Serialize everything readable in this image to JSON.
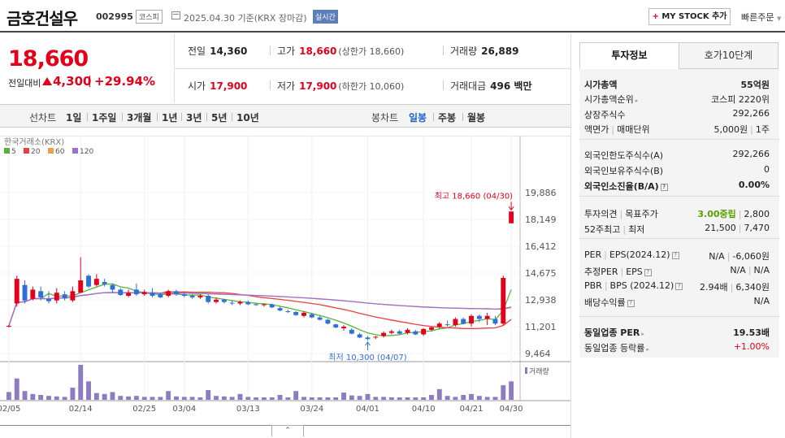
{
  "header": {
    "stock_name": "금호건설우",
    "stock_code": "002995",
    "market_badge": "코스피",
    "date_text": "2025.04.30 기준(KRX 장마감)",
    "realtime_badge": "실시간",
    "mystock_plus": "+",
    "mystock_label": " MY STOCK 추가",
    "quick_order": "빠른주문"
  },
  "price": {
    "current": "18,660",
    "change_label": "전일대비",
    "change_amount": "4,300",
    "change_sep": "|",
    "change_percent": "+29.94%"
  },
  "quotes": {
    "prev_close": {
      "label": "전일",
      "value": "14,360"
    },
    "high": {
      "label": "고가",
      "value": "18,660",
      "sub": "(상한가 18,660)"
    },
    "volume": {
      "label": "거래량",
      "value": "26,889"
    },
    "open": {
      "label": "시가",
      "value": "17,900"
    },
    "low": {
      "label": "저가",
      "value": "17,900",
      "sub": "(하한가 10,060)"
    },
    "amount": {
      "label": "거래대금",
      "value": "496 백만"
    }
  },
  "period_bar": {
    "line_chart_label": "선차트",
    "periods": [
      "1일",
      "1주일",
      "3개월",
      "1년",
      "3년",
      "5년",
      "10년"
    ],
    "candle_chart_label": "봉차트",
    "candle_periods": [
      "일봉",
      "주봉",
      "월봉"
    ],
    "active_candle": "일봉"
  },
  "chart": {
    "source_label": "한국거래소(KRX)",
    "ma_legend": [
      {
        "label": "5",
        "color": "#57b33a"
      },
      {
        "label": "20",
        "color": "#e8413c"
      },
      {
        "label": "60",
        "color": "#f29b4b"
      },
      {
        "label": "120",
        "color": "#9b6fd6"
      }
    ],
    "high_annotation": "최고 18,660 (04/30)",
    "low_annotation": "최저 10,300 (04/07)",
    "volume_label": "거래량",
    "hide_button": "⌃"
  },
  "chart_data": {
    "type": "candlestick",
    "y_ticks": [
      "19,886",
      "18,149",
      "16,412",
      "14,675",
      "12,938",
      "11,201",
      "9,464"
    ],
    "y_range": [
      9464,
      19886
    ],
    "x_ticks": [
      "02/05",
      "02/14",
      "02/25",
      "03/04",
      "03/13",
      "03/24",
      "04/01",
      "04/10",
      "04/21",
      "04/30"
    ],
    "colors": {
      "up": "#e2001a",
      "down": "#2f6fd8",
      "volume": "#8e7cc3"
    },
    "candles": [
      [
        11200,
        11300,
        11150,
        11250,
        16
      ],
      [
        12700,
        14500,
        12500,
        14300,
        44
      ],
      [
        13900,
        14200,
        12700,
        12900,
        18
      ],
      [
        13000,
        13800,
        12900,
        13600,
        12
      ],
      [
        13500,
        13800,
        12900,
        13100,
        10
      ],
      [
        13000,
        13500,
        12700,
        12850,
        8
      ],
      [
        12900,
        13700,
        12700,
        13400,
        7
      ],
      [
        13300,
        13500,
        12900,
        13050,
        6
      ],
      [
        12900,
        13800,
        12800,
        13500,
        25
      ],
      [
        13400,
        15700,
        13400,
        14200,
        72
      ],
      [
        14500,
        14600,
        13700,
        13800,
        38
      ],
      [
        13900,
        14600,
        13800,
        14300,
        14
      ],
      [
        14100,
        14300,
        13800,
        13950,
        12
      ],
      [
        13900,
        14000,
        13400,
        13600,
        16
      ],
      [
        13600,
        13700,
        13200,
        13250,
        8
      ],
      [
        13200,
        13600,
        13100,
        13400,
        7
      ],
      [
        13600,
        14000,
        13200,
        13300,
        8
      ],
      [
        13300,
        13600,
        13200,
        13450,
        6
      ],
      [
        13400,
        13700,
        13100,
        13200,
        6
      ],
      [
        13300,
        13400,
        13050,
        13100,
        6
      ],
      [
        13200,
        13600,
        13100,
        13500,
        18
      ],
      [
        13500,
        13600,
        13200,
        13300,
        7
      ],
      [
        13300,
        13400,
        13100,
        13200,
        6
      ],
      [
        13200,
        13300,
        13000,
        13100,
        6
      ],
      [
        13100,
        13300,
        13000,
        13200,
        5
      ],
      [
        13200,
        13300,
        12700,
        12800,
        20
      ],
      [
        12800,
        13100,
        12700,
        12950,
        8
      ],
      [
        12950,
        13000,
        12700,
        12800,
        7
      ],
      [
        12750,
        12900,
        12600,
        12700,
        6
      ],
      [
        12700,
        12900,
        12600,
        12800,
        12
      ],
      [
        12800,
        12900,
        12600,
        12650,
        6
      ],
      [
        12650,
        12750,
        12550,
        12600,
        5
      ],
      [
        12600,
        12700,
        12500,
        12650,
        5
      ],
      [
        12650,
        12700,
        12400,
        12450,
        5
      ],
      [
        12400,
        12500,
        12200,
        12250,
        10
      ],
      [
        12200,
        12300,
        12100,
        12150,
        5
      ],
      [
        12150,
        12200,
        11900,
        11950,
        18
      ],
      [
        11900,
        12200,
        11800,
        12100,
        6
      ],
      [
        12000,
        12100,
        11750,
        11800,
        5
      ],
      [
        11800,
        11900,
        11600,
        11650,
        5
      ],
      [
        11650,
        11700,
        11350,
        11400,
        5
      ],
      [
        11350,
        11400,
        11100,
        11150,
        5
      ],
      [
        11100,
        11300,
        10950,
        11200,
        15
      ],
      [
        11000,
        11100,
        10700,
        10750,
        9
      ],
      [
        10700,
        10800,
        10450,
        10500,
        8
      ],
      [
        10500,
        10600,
        10300,
        10400,
        12
      ],
      [
        10500,
        10600,
        10400,
        10550,
        6
      ],
      [
        10600,
        10900,
        10500,
        10800,
        6
      ],
      [
        10800,
        11000,
        10700,
        10900,
        5
      ],
      [
        10900,
        11000,
        10700,
        10750,
        5
      ],
      [
        10800,
        11100,
        10700,
        11000,
        5
      ],
      [
        10900,
        11000,
        10650,
        10700,
        5
      ],
      [
        10700,
        11100,
        10600,
        11050,
        5
      ],
      [
        11000,
        11200,
        10900,
        11150,
        10
      ],
      [
        11200,
        11500,
        11100,
        11400,
        22
      ],
      [
        11350,
        11600,
        11200,
        11300,
        8
      ],
      [
        11300,
        11800,
        11200,
        11700,
        6
      ],
      [
        11700,
        11800,
        11350,
        11400,
        10
      ],
      [
        11400,
        12000,
        11200,
        11900,
        12
      ],
      [
        11900,
        12000,
        11500,
        11700,
        8
      ],
      [
        11700,
        12100,
        11300,
        11900,
        6
      ],
      [
        11700,
        11900,
        11300,
        11400,
        6
      ],
      [
        11400,
        14500,
        11300,
        14360,
        30
      ],
      [
        17900,
        18660,
        17900,
        18660,
        38
      ]
    ]
  },
  "tabs": {
    "invest_info": "투자정보",
    "order_book": "호가10단계"
  },
  "invest": {
    "market_cap": {
      "label": "시가총액",
      "value": "55억원"
    },
    "market_cap_rank": {
      "label": "시가총액순위",
      "value": "코스피 2220위"
    },
    "shares": {
      "label": "상장주식수",
      "value": "292,266"
    },
    "par_value": {
      "label": "액면가",
      "label2": "매매단위",
      "value": "5,000원",
      "value2": "1주"
    },
    "foreign_limit": {
      "label": "외국인한도주식수(A)",
      "value": "292,266"
    },
    "foreign_hold": {
      "label": "외국인보유주식수(B)",
      "value": "0"
    },
    "foreign_ratio": {
      "label": "외국인소진율(B/A)",
      "value": "0.00%"
    },
    "opinion": {
      "label": "투자의견",
      "label2": "목표주가",
      "value": "3.00중립",
      "value2": "2,800"
    },
    "week52": {
      "label": "52주최고",
      "label2": "최저",
      "value": "21,500",
      "value2": "7,470"
    },
    "per_eps": {
      "label": "PER",
      "label2": "EPS(2024.12)",
      "value": "N/A",
      "value2": "-6,060원"
    },
    "est_per_eps": {
      "label": "추정PER",
      "label2": "EPS",
      "value": "N/A",
      "value2": "N/A"
    },
    "pbr_bps": {
      "label": "PBR",
      "label2": "BPS (2024.12)",
      "value": "2.94배",
      "value2": "6,340원"
    },
    "dividend_yield": {
      "label": "배당수익률",
      "value": "N/A"
    },
    "industry_per": {
      "label": "동일업종 PER",
      "value": "19.53배"
    },
    "industry_change": {
      "label": "동일업종 등락률",
      "value": "+1.00%"
    }
  }
}
